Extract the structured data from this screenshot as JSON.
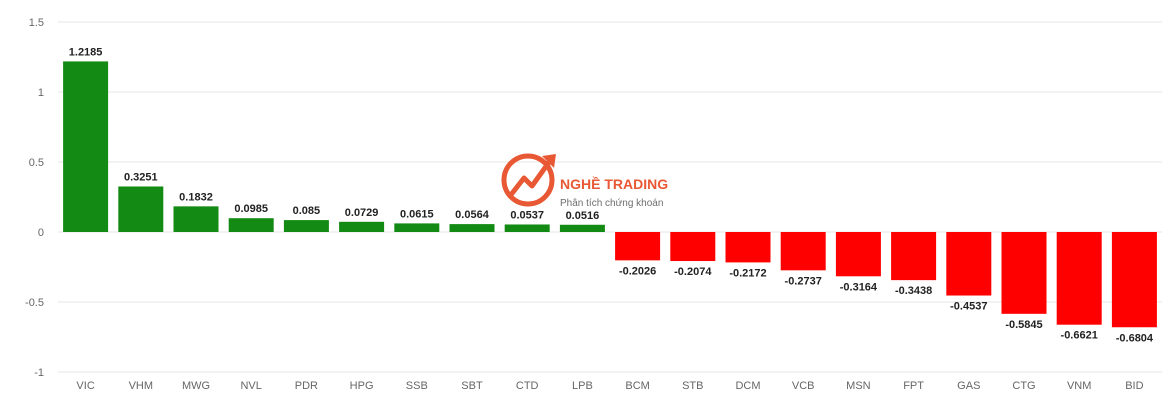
{
  "chart_data": {
    "type": "bar",
    "categories": [
      "VIC",
      "VHM",
      "MWG",
      "NVL",
      "PDR",
      "HPG",
      "SSB",
      "SBT",
      "CTD",
      "LPB",
      "BCM",
      "STB",
      "DCM",
      "VCB",
      "MSN",
      "FPT",
      "GAS",
      "CTG",
      "VNM",
      "BID"
    ],
    "values": [
      1.2185,
      0.3251,
      0.1832,
      0.0985,
      0.085,
      0.0729,
      0.0615,
      0.0564,
      0.0537,
      0.0516,
      -0.2026,
      -0.2074,
      -0.2172,
      -0.2737,
      -0.3164,
      -0.3438,
      -0.4537,
      -0.5845,
      -0.6621,
      -0.6804
    ],
    "ylim": [
      -1,
      1.5
    ],
    "yticks": [
      "1.5",
      "1",
      "0.5",
      "0",
      "-0.5",
      "-1"
    ],
    "grid": true,
    "colors": {
      "positive": "#138a13",
      "negative": "#ff0000"
    }
  },
  "watermark": {
    "title": "NGHỀ TRADING",
    "subtitle": "Phân tích chứng khoán",
    "accent": "#e8502a"
  }
}
